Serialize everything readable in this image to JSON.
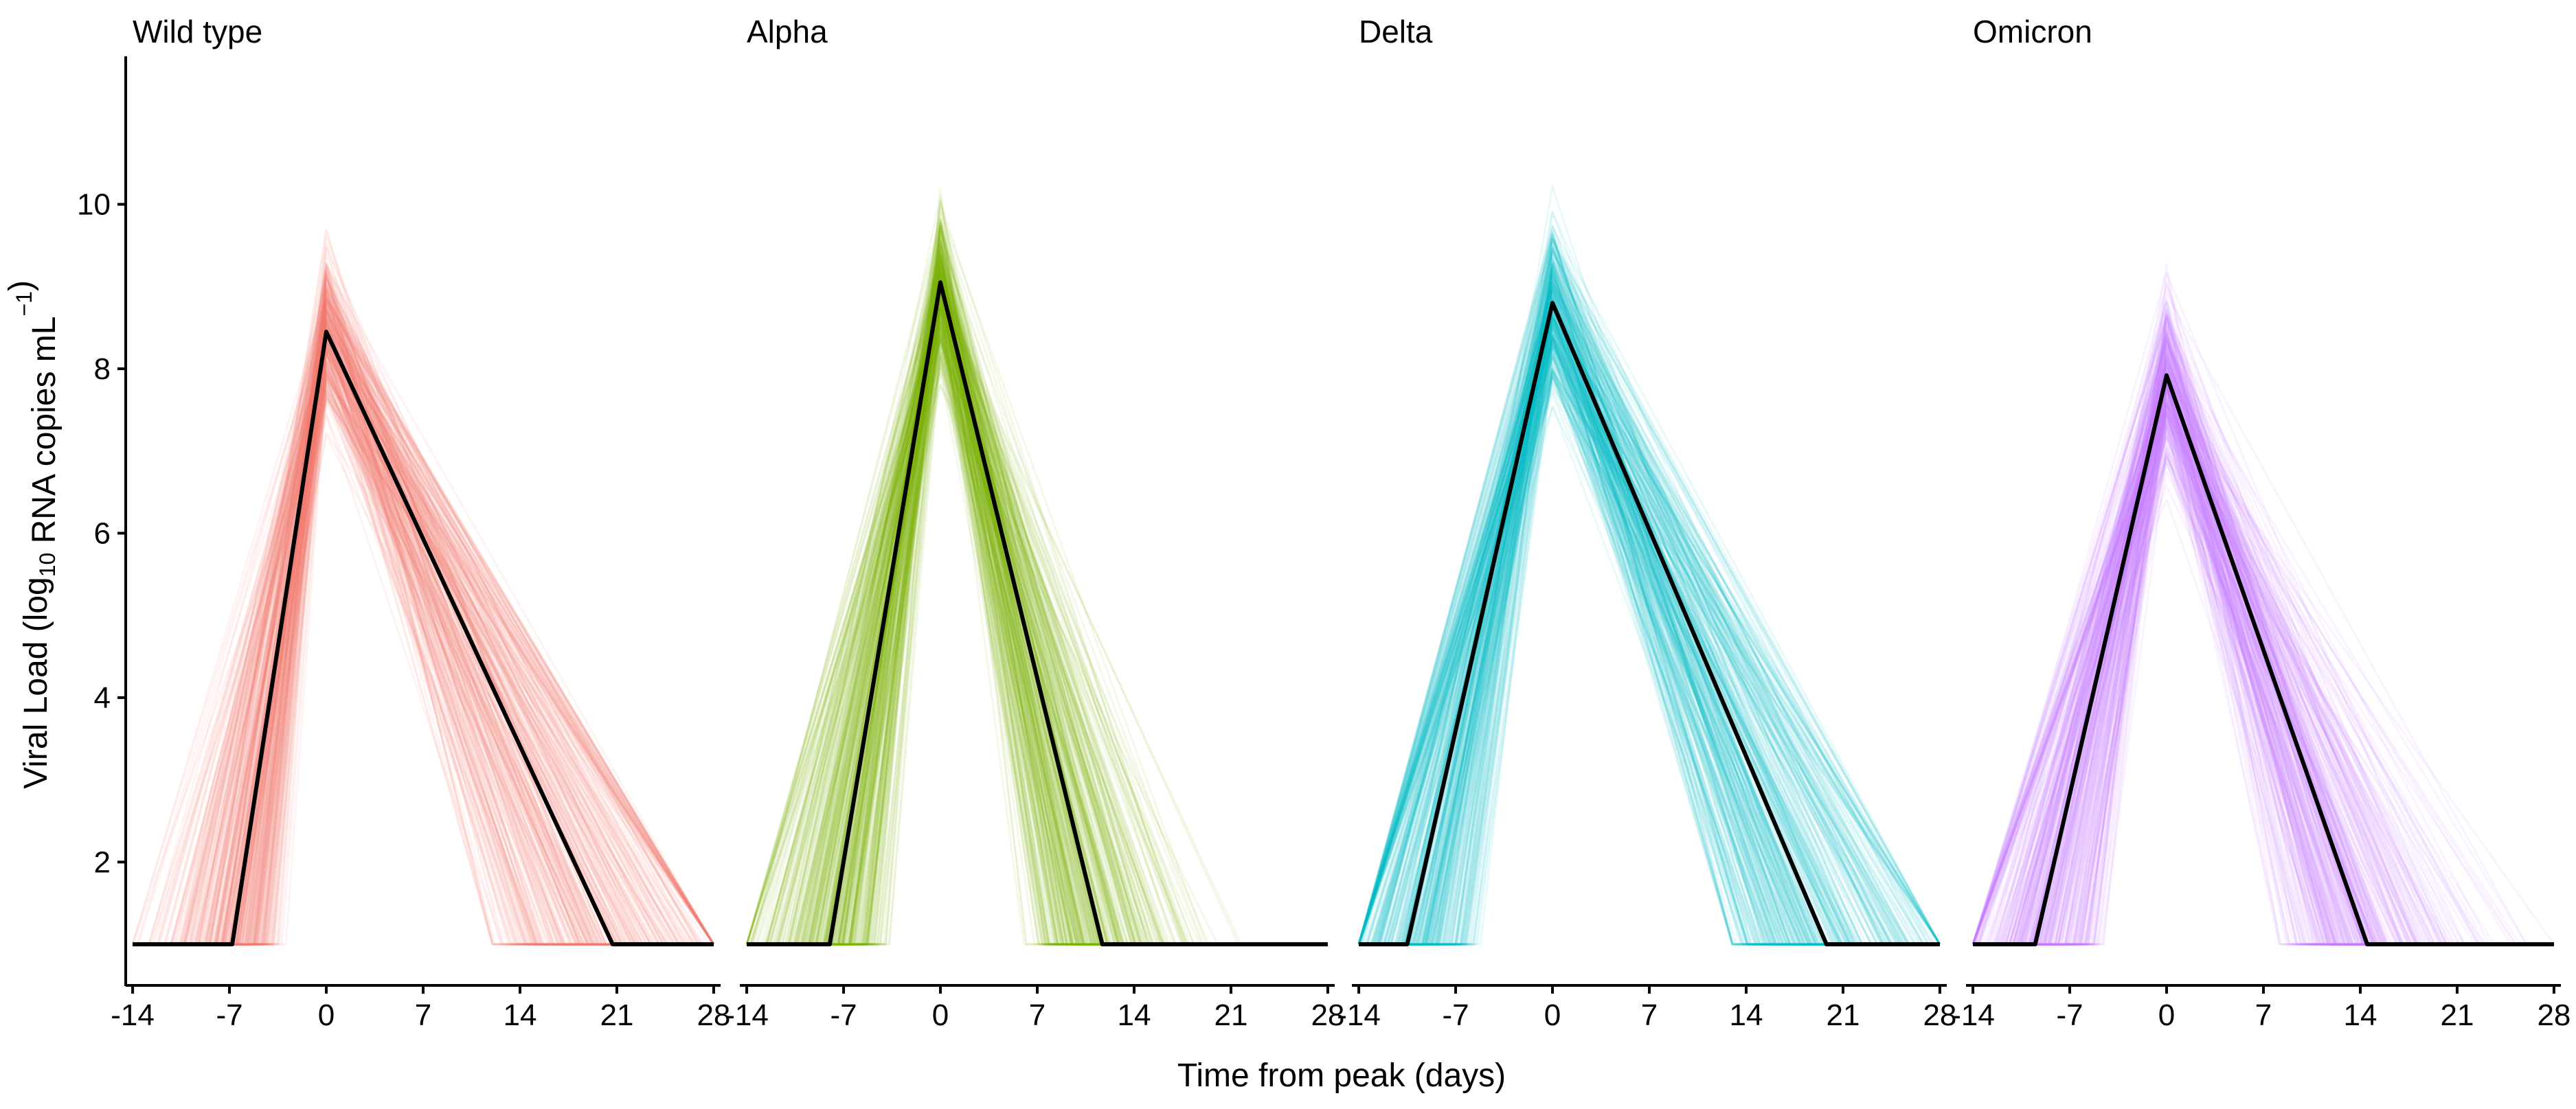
{
  "chart_data": {
    "type": "line",
    "xlabel": "Time from peak (days)",
    "ylabel": {
      "prefix": "Viral Load (log",
      "sub": "10",
      "middle": " RNA copies mL",
      "sup": "−1",
      "suffix": ")"
    },
    "xlim": [
      -14.5,
      28.5
    ],
    "ylim": [
      0.5,
      11.8
    ],
    "x_ticks": [
      -14,
      -7,
      0,
      7,
      14,
      21,
      28
    ],
    "x_tick_labels": [
      "-14",
      "-7",
      "0",
      "7",
      "14",
      "21",
      "28"
    ],
    "y_ticks": [
      2,
      4,
      6,
      8,
      10
    ],
    "y_tick_labels": [
      "2",
      "4",
      "6",
      "8",
      "10"
    ],
    "baseline": 1,
    "grid": false,
    "panels": [
      {
        "title": "Wild type",
        "color": "#F8766D",
        "median": {
          "x": [
            -14,
            -6.8,
            0,
            20.7,
            28
          ],
          "y": [
            1,
            1,
            8.45,
            1,
            1
          ]
        },
        "band": {
          "peak_min": 6.5,
          "peak_max": 10.6,
          "rise_min": 1.5,
          "rise_max": 14,
          "fall_min": 12,
          "fall_max": 28
        }
      },
      {
        "title": "Alpha",
        "color": "#7CAE00",
        "median": {
          "x": [
            -14,
            -8,
            0,
            11.7,
            28
          ],
          "y": [
            1,
            1,
            9.05,
            1,
            1
          ]
        },
        "band": {
          "peak_min": 7.2,
          "peak_max": 11.3,
          "rise_min": 1.5,
          "rise_max": 14,
          "fall_min": 2,
          "fall_max": 28
        }
      },
      {
        "title": "Delta",
        "color": "#00BFC4",
        "median": {
          "x": [
            -14,
            -10.5,
            0,
            19.8,
            28
          ],
          "y": [
            1,
            1,
            8.8,
            1,
            1
          ]
        },
        "band": {
          "peak_min": 7.2,
          "peak_max": 11.0,
          "rise_min": 3,
          "rise_max": 14,
          "fall_min": 13,
          "fall_max": 28
        }
      },
      {
        "title": "Omicron",
        "color": "#C77CFF",
        "median": {
          "x": [
            -14,
            -9.5,
            0,
            14.5,
            28
          ],
          "y": [
            1,
            1,
            7.92,
            1,
            1
          ]
        },
        "band": {
          "peak_min": 6.3,
          "peak_max": 10.4,
          "rise_min": 1.5,
          "rise_max": 14,
          "fall_min": 2,
          "fall_max": 28
        }
      }
    ]
  }
}
